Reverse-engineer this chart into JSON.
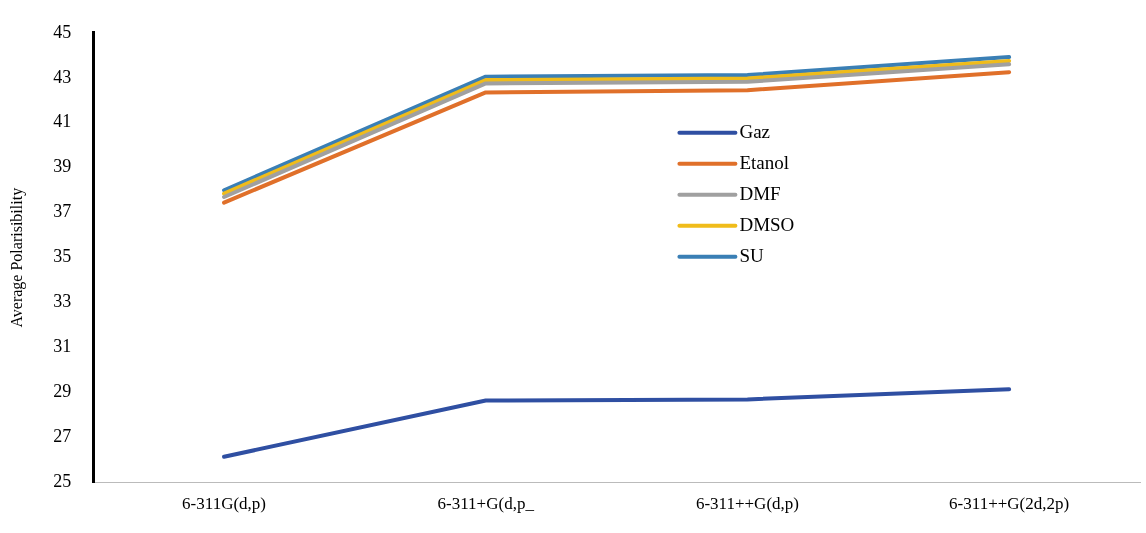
{
  "chart_data": {
    "type": "line",
    "ylabel": "Average Polarisibility",
    "categories": [
      "6-311G(d,p)",
      "6-311+G(d,p_",
      "6-311++G(d,p)",
      "6-311++G(2d,2p)"
    ],
    "series": [
      {
        "name": "Gaz",
        "color": "#2f4fa2",
        "values": [
          26.15,
          28.65,
          28.7,
          29.15
        ]
      },
      {
        "name": "Etanol",
        "color": "#e0702a",
        "values": [
          37.45,
          42.35,
          42.45,
          43.25
        ]
      },
      {
        "name": "DMF",
        "color": "#a0a0a0",
        "values": [
          37.7,
          42.75,
          42.82,
          43.6
        ]
      },
      {
        "name": "DMSO",
        "color": "#f0bc1a",
        "values": [
          37.85,
          42.9,
          42.97,
          43.75
        ]
      },
      {
        "name": "SU",
        "color": "#3a7fb5",
        "values": [
          38.0,
          43.05,
          43.12,
          43.92
        ]
      }
    ],
    "ylim": [
      25,
      45
    ],
    "yticks": [
      25,
      27,
      29,
      31,
      33,
      35,
      37,
      39,
      41,
      43,
      45
    ],
    "grid": false,
    "legend": "top right",
    "marker": "none"
  }
}
